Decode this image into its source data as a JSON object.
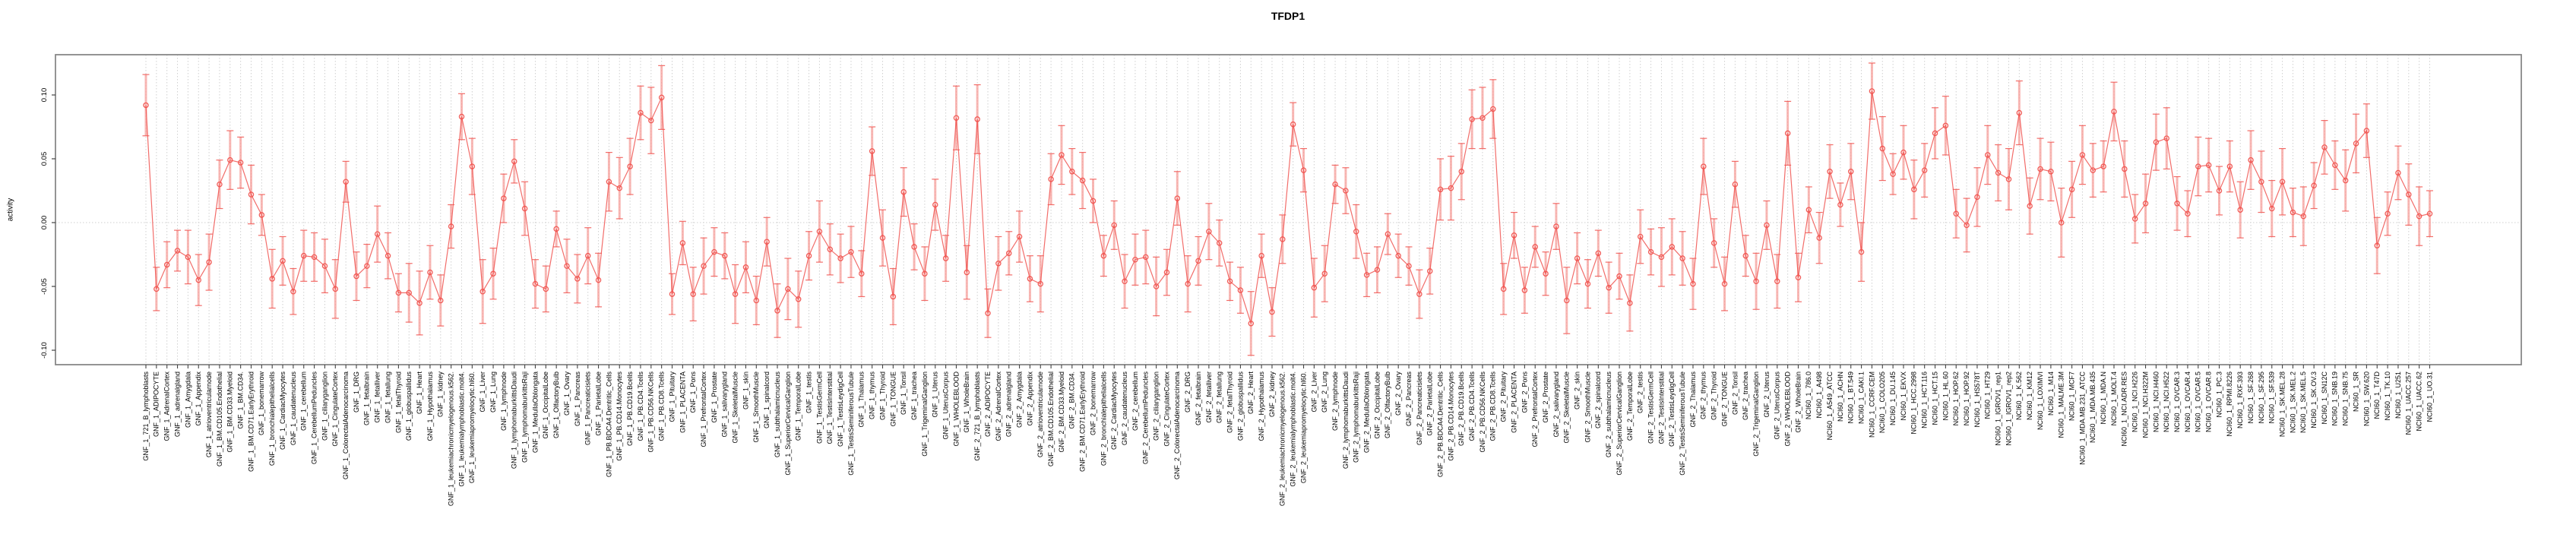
{
  "title": "TFDP1",
  "chart_data": {
    "type": "line",
    "title": "TFDP1",
    "ylabel": "activity",
    "xlabel": "",
    "ylim": [
      -0.131,
      0.132
    ],
    "yticks": [
      -0.1,
      -0.05,
      0.0,
      0.05,
      0.1
    ],
    "grid": "vertical-dotted-per-category-plus-zero-line",
    "legend": "none",
    "marker": "open-circle-with-error-bars",
    "series_color": "#f05450",
    "errorbar_color": "#f7a09b",
    "grid_color": "#cfcfcf",
    "box_color": "#888888",
    "tick_color": "#444444",
    "categories": [
      "GNF_1_721_B_lymphoblasts",
      "GNF_1_ADIPOCYTE",
      "GNF_1_AdrenalCortex",
      "GNF_1_adrenalgland",
      "GNF_1_Amygdala",
      "GNF_1_Appendix",
      "GNF_1_atrioventricularnode",
      "GNF_1_BM.CD105.Endothelial",
      "GNF_1_BM.CD33.Myeloid",
      "GNF_1_BM.CD34.",
      "GNF_1_BM.CD71.EarlyErythroid",
      "GNF_1_bonemarrow",
      "GNF_1_bronchialepithelialcells",
      "GNF_1_CardiacMyocytes",
      "GNF_1_caudatenucleus",
      "GNF_1_cerebellum",
      "GNF_1_CerebellumPeduncles",
      "GNF_1_ciliaryganglion",
      "GNF_1_CingulateCortex",
      "GNF_1_ColorectalAdenocarcinoma",
      "GNF_1_DRG",
      "GNF_1_fetalbrain",
      "GNF_1_fetalliver",
      "GNF_1_fetallung",
      "GNF_1_fetalThyroid",
      "GNF_1_globuspallidus",
      "GNF_1_Heart",
      "GNF_1_Hypothalamus",
      "GNF_1_kidney",
      "GNF_1_leukemiachronicmyelogenous.k562.",
      "GNF_1_leukemialymphoblastic.molt4.",
      "GNF_1_leukemiapromyelocytic.hl60.",
      "GNF_1_Liver",
      "GNF_1_Lung",
      "GNF_1_lymphnode",
      "GNF_1_lymphomaburkittsDaudi",
      "GNF_1_lymphomaburkittsRaji",
      "GNF_1_MedullaOblongata",
      "GNF_1_OccipitalLobe",
      "GNF_1_OlfactoryBulb",
      "GNF_1_Ovary",
      "GNF_1_Pancreas",
      "GNF_1_Pancreaticislets",
      "GNF_1_ParietalLobe",
      "GNF_1_PB.BDCA4.Dentritic_Cells",
      "GNF_1_PB.CD14.Monocytes",
      "GNF_1_PB.CD19.Bcells",
      "GNF_1_PB.CD4.Tcells",
      "GNF_1_PB.CD56.NKCells",
      "GNF_1_PB.CD8.Tcells",
      "GNF_1_Pituitary",
      "GNF_1_PLACENTA",
      "GNF_1_Pons",
      "GNF_1_PrefrontalCortex",
      "GNF_1_Prostate",
      "GNF_1_salivarygland",
      "GNF_1_SkeletalMuscle",
      "GNF_1_skin",
      "GNF_1_SmoothMuscle",
      "GNF_1_spinalcord",
      "GNF_1_subthalamicnucleus",
      "GNF_1_SuperiorCervicalGanglion",
      "GNF_1_TemporalLobe",
      "GNF_1_testis",
      "GNF_1_TestisGermCell",
      "GNF_1_TestisInterstitial",
      "GNF_1_TestisLeydigCell",
      "GNF_1_TestisSeminiferousTubule",
      "GNF_1_Thalamus",
      "GNF_1_thymus",
      "GNF_1_Thyroid",
      "GNF_1_TONGUE",
      "GNF_1_Tonsil",
      "GNF_1_trachea",
      "GNF_1_TrigeminalGanglion",
      "GNF_1_Uterus",
      "GNF_1_UterusCorpus",
      "GNF_1_WHOLEBLOOD",
      "GNF_1_WholeBrain",
      "GNF_2_721_B_lymphoblasts",
      "GNF_2_ADIPOCYTE",
      "GNF_2_AdrenalCortex",
      "GNF_2_adrenalgland",
      "GNF_2_Amygdala",
      "GNF_2_Appendix",
      "GNF_2_atrioventricularnode",
      "GNF_2_BM.CD105.Endothelial",
      "GNF_2_BM.CD33.Myeloid",
      "GNF_2_BM.CD34.",
      "GNF_2_BM.CD71.EarlyErythroid",
      "GNF_2_bonemarrow",
      "GNF_2_bronchialepithelialcells",
      "GNF_2_CardiacMyocytes",
      "GNF_2_caudatenucleus",
      "GNF_2_cerebellum",
      "GNF_2_CerebellumPeduncles",
      "GNF_2_ciliaryganglion",
      "GNF_2_CingulateCortex",
      "GNF_2_ColorectalAdenocarcinoma",
      "GNF_2_DRG",
      "GNF_2_fetalbrain",
      "GNF_2_fetalliver",
      "GNF_2_fetallung",
      "GNF_2_fetalThyroid",
      "GNF_2_globuspallidus",
      "GNF_2_Heart",
      "GNF_2_Hypothalamus",
      "GNF_2_kidney",
      "GNF_2_leukemiachronicmyelogenous.k562.",
      "GNF_2_leukemialymphoblastic.molt4.",
      "GNF_2_leukemiapromyelocytic.hl60.",
      "GNF_2_Liver",
      "GNF_2_Lung",
      "GNF_2_lymphnode",
      "GNF_2_lymphomaburkittsDaudi",
      "GNF_2_lymphomaburkittsRaji",
      "GNF_2_MedullaOblongata",
      "GNF_2_OccipitalLobe",
      "GNF_2_OlfactoryBulb",
      "GNF_2_Ovary",
      "GNF_2_Pancreas",
      "GNF_2_Pancreaticislets",
      "GNF_2_ParietalLobe",
      "GNF_2_PB.BDCA4.Dentritic_Cells",
      "GNF_2_PB.CD14.Monocytes",
      "GNF_2_PB.CD19.Bcells",
      "GNF_2_PB.CD4.Tcells",
      "GNF_2_PB.CD56.NKCells",
      "GNF_2_PB.CD8.Tcells",
      "GNF_2_Pituitary",
      "GNF_2_PLACENTA",
      "GNF_2_Pons",
      "GNF_2_PrefrontalCortex",
      "GNF_2_Prostate",
      "GNF_2_salivarygland",
      "GNF_2_SkeletalMuscle",
      "GNF_2_skin",
      "GNF_2_SmoothMuscle",
      "GNF_2_spinalcord",
      "GNF_2_subthalamicnucleus",
      "GNF_2_SuperiorCervicalGanglion",
      "GNF_2_TemporalLobe",
      "GNF_2_testis",
      "GNF_2_TestisGermCell",
      "GNF_2_TestisInterstitial",
      "GNF_2_TestisLeydigCell",
      "GNF_2_TestisSeminiferousTubule",
      "GNF_2_Thalamus",
      "GNF_2_thymus",
      "GNF_2_Thyroid",
      "GNF_2_TONGUE",
      "GNF_2_Tonsil",
      "GNF_2_trachea",
      "GNF_2_TrigeminalGanglion",
      "GNF_2_Uterus",
      "GNF_2_UterusCorpus",
      "GNF_2_WHOLEBLOOD",
      "GNF_2_WholeBrain",
      "NCI60_1_786.0",
      "NCI60_1_A498",
      "NCI60_1_A549_ATCC",
      "NCI60_1_ACHN",
      "NCI60_1_BT.549",
      "NCI60_1_CAKI.1",
      "NCI60_1_CCRF.CEM",
      "NCI60_1_COLO205",
      "NCI60_1_DU.145",
      "NCI60_1_EKVX",
      "NCI60_1_HCC.2998",
      "NCI60_1_HCT.116",
      "NCI60_1_HCT.15",
      "NCI60_1_HL.60",
      "NCI60_1_HOP.62",
      "NCI60_1_HOP.92",
      "NCI60_1_HS578T",
      "NCI60_1_HT29",
      "NCI60_1_IGROV1_rep1",
      "NCI60_1_IGROV1_rep2",
      "NCI60_1_K.562",
      "NCI60_1_KM12",
      "NCI60_1_LOXIMVI",
      "NCI60_1_M14",
      "NCI60_1_MALME.3M",
      "NCI60_1_MCF7",
      "NCI60_1_MDA.MB.231_ATCC",
      "NCI60_1_MDA.MB.435",
      "NCI60_1_MDA.N",
      "NCI60_1_MOLT.4",
      "NCI60_1_NCI.ADR.RES",
      "NCI60_1_NCI.H226",
      "NCI60_1_NCI.H322M",
      "NCI60_1_NCI.H460",
      "NCI60_1_NCI.H522",
      "NCI60_1_OVCAR.3",
      "NCI60_1_OVCAR.4",
      "NCI60_1_OVCAR.5",
      "NCI60_1_OVCAR.8",
      "NCI60_1_PC.3",
      "NCI60_1_RPMI.8226",
      "NCI60_1_RXF.393",
      "NCI60_1_SF.268",
      "NCI60_1_SF.295",
      "NCI60_1_SF.539",
      "NCI60_1_SK.MEL.28",
      "NCI60_1_SK.MEL.2",
      "NCI60_1_SK.MEL.5",
      "NCI60_1_SK.OV.3",
      "NCI60_1_SN12C",
      "NCI60_1_SNB.19",
      "NCI60_1_SNB.75",
      "NCI60_1_SR",
      "NCI60_1_SW.620",
      "NCI60_1_T47D",
      "NCI60_1_TK.10",
      "NCI60_1_U251",
      "NCI60_1_UACC.257",
      "NCI60_1_UACC.62",
      "NCI60_1_UO.31"
    ],
    "values": [
      0.092,
      -0.052,
      -0.033,
      -0.022,
      -0.027,
      -0.045,
      -0.031,
      0.03,
      0.049,
      0.047,
      0.022,
      0.006,
      -0.044,
      -0.03,
      -0.054,
      -0.026,
      -0.027,
      -0.034,
      -0.052,
      0.032,
      -0.042,
      -0.034,
      -0.009,
      -0.026,
      -0.055,
      -0.055,
      -0.063,
      -0.039,
      -0.061,
      -0.003,
      0.083,
      0.044,
      -0.054,
      -0.04,
      0.019,
      0.048,
      0.011,
      -0.048,
      -0.052,
      -0.005,
      -0.034,
      -0.044,
      -0.026,
      -0.045,
      0.032,
      0.027,
      0.044,
      0.086,
      0.08,
      0.098,
      -0.056,
      -0.016,
      -0.056,
      -0.034,
      -0.023,
      -0.026,
      -0.056,
      -0.035,
      -0.061,
      -0.015,
      -0.069,
      -0.052,
      -0.06,
      -0.026,
      -0.007,
      -0.021,
      -0.028,
      -0.023,
      -0.04,
      0.056,
      -0.012,
      -0.058,
      0.024,
      -0.019,
      -0.04,
      0.014,
      -0.028,
      0.082,
      -0.039,
      0.081,
      -0.071,
      -0.032,
      -0.024,
      -0.011,
      -0.044,
      -0.048,
      0.034,
      0.053,
      0.04,
      0.033,
      0.017,
      -0.026,
      -0.002,
      -0.046,
      -0.029,
      -0.027,
      -0.05,
      -0.039,
      0.019,
      -0.048,
      -0.03,
      -0.007,
      -0.016,
      -0.046,
      -0.053,
      -0.079,
      -0.026,
      -0.07,
      -0.013,
      0.077,
      0.041,
      -0.051,
      -0.04,
      0.03,
      0.025,
      -0.007,
      -0.041,
      -0.037,
      -0.009,
      -0.026,
      -0.034,
      -0.056,
      -0.038,
      0.026,
      0.027,
      0.04,
      0.081,
      0.082,
      0.089,
      -0.052,
      -0.01,
      -0.053,
      -0.019,
      -0.04,
      -0.003,
      -0.061,
      -0.028,
      -0.048,
      -0.024,
      -0.051,
      -0.042,
      -0.063,
      -0.011,
      -0.023,
      -0.027,
      -0.019,
      -0.028,
      -0.048,
      0.044,
      -0.016,
      -0.048,
      0.03,
      -0.026,
      -0.046,
      -0.002,
      -0.046,
      0.07,
      -0.043,
      0.01,
      -0.012,
      0.04,
      0.014,
      0.04,
      -0.023,
      0.103,
      0.058,
      0.038,
      0.055,
      0.026,
      0.041,
      0.07,
      0.076,
      0.007,
      -0.002,
      0.02,
      0.053,
      0.039,
      0.034,
      0.086,
      0.013,
      0.042,
      0.04,
      0.0,
      0.026,
      0.053,
      0.041,
      0.044,
      0.087,
      0.042,
      0.003,
      0.015,
      0.063,
      0.066,
      0.015,
      0.007,
      0.044,
      0.045,
      0.025,
      0.044,
      0.01,
      0.049,
      0.032,
      0.011,
      0.032,
      0.008,
      0.005,
      0.029,
      0.059,
      0.045,
      0.033,
      0.062,
      0.072,
      -0.018,
      0.007,
      0.039,
      0.022,
      0.005,
      0.007
    ],
    "errors": [
      0.024,
      0.017,
      0.018,
      0.016,
      0.021,
      0.02,
      0.022,
      0.019,
      0.023,
      0.02,
      0.023,
      0.016,
      0.023,
      0.019,
      0.018,
      0.02,
      0.019,
      0.021,
      0.023,
      0.016,
      0.019,
      0.017,
      0.022,
      0.018,
      0.015,
      0.023,
      0.025,
      0.021,
      0.02,
      0.017,
      0.018,
      0.022,
      0.025,
      0.02,
      0.019,
      0.017,
      0.021,
      0.019,
      0.018,
      0.014,
      0.021,
      0.019,
      0.022,
      0.021,
      0.023,
      0.024,
      0.022,
      0.021,
      0.026,
      0.025,
      0.016,
      0.017,
      0.021,
      0.022,
      0.019,
      0.018,
      0.023,
      0.02,
      0.019,
      0.019,
      0.021,
      0.024,
      0.022,
      0.019,
      0.024,
      0.02,
      0.019,
      0.02,
      0.018,
      0.019,
      0.022,
      0.022,
      0.019,
      0.018,
      0.021,
      0.02,
      0.018,
      0.025,
      0.021,
      0.027,
      0.019,
      0.021,
      0.017,
      0.02,
      0.018,
      0.022,
      0.02,
      0.023,
      0.018,
      0.022,
      0.017,
      0.016,
      0.019,
      0.021,
      0.02,
      0.021,
      0.023,
      0.018,
      0.021,
      0.022,
      0.019,
      0.022,
      0.018,
      0.015,
      0.018,
      0.025,
      0.017,
      0.019,
      0.019,
      0.017,
      0.017,
      0.023,
      0.022,
      0.015,
      0.018,
      0.021,
      0.017,
      0.018,
      0.016,
      0.017,
      0.015,
      0.019,
      0.018,
      0.024,
      0.025,
      0.022,
      0.023,
      0.024,
      0.023,
      0.02,
      0.018,
      0.018,
      0.016,
      0.017,
      0.018,
      0.026,
      0.02,
      0.019,
      0.018,
      0.02,
      0.018,
      0.022,
      0.021,
      0.018,
      0.023,
      0.022,
      0.021,
      0.02,
      0.022,
      0.019,
      0.021,
      0.018,
      0.016,
      0.022,
      0.019,
      0.021,
      0.025,
      0.019,
      0.018,
      0.02,
      0.021,
      0.017,
      0.022,
      0.023,
      0.022,
      0.025,
      0.016,
      0.021,
      0.023,
      0.021,
      0.02,
      0.023,
      0.019,
      0.021,
      0.023,
      0.023,
      0.022,
      0.024,
      0.025,
      0.022,
      0.024,
      0.023,
      0.027,
      0.022,
      0.023,
      0.021,
      0.02,
      0.023,
      0.022,
      0.019,
      0.023,
      0.022,
      0.024,
      0.021,
      0.018,
      0.023,
      0.021,
      0.019,
      0.02,
      0.022,
      0.023,
      0.024,
      0.022,
      0.026,
      0.019,
      0.023,
      0.018,
      0.021,
      0.019,
      0.024,
      0.023,
      0.021,
      0.022,
      0.017,
      0.021,
      0.024,
      0.023,
      0.018
    ]
  }
}
